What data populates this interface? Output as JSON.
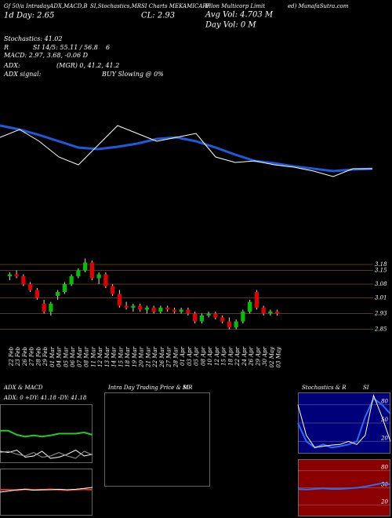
{
  "header": {
    "row1": [
      "Gf 50/a IntradayADX,MACD,B",
      "SI,Stochastics,MR",
      "SI Charts MEKAMICARP",
      "Filon Multicorp Limit",
      "ed) MunafaSutra.com"
    ],
    "day": "1d Day: 2.65",
    "close": "CL: 2.93",
    "avg_vol": "Avg Vol: 4.703 M",
    "day_vol": "Day Vol: 0  M",
    "stats": [
      "Stochastics: 41.02",
      "R",
      "SI 14/5: 55.11 / 56.8",
      "6",
      "MACD: 2.97, 3.68, -0.06 D",
      "ADX:",
      "(MGR) 0, 41.2, 41.2",
      "ADX  signal:",
      "BUY Slowing @ 0%"
    ]
  },
  "chart_data": [
    {
      "type": "line",
      "ylim": [
        0,
        100
      ],
      "series": [
        {
          "color": "#1e5adc",
          "values": [
            80,
            75,
            68,
            60,
            52,
            50,
            53,
            57,
            63,
            65,
            60,
            52,
            43,
            35,
            32,
            28,
            25,
            22,
            24,
            25
          ]
        },
        {
          "color": "#ffffff",
          "values": [
            65,
            75,
            60,
            40,
            30,
            55,
            80,
            70,
            60,
            65,
            70,
            40,
            33,
            35,
            30,
            27,
            22,
            15,
            25,
            25
          ]
        }
      ]
    },
    {
      "type": "candlestick",
      "categories": [
        "22 Feb",
        "23 Feb",
        "26 Feb",
        "27 Feb",
        "28 Feb",
        "29 Feb",
        "01 Mar",
        "04 Mar",
        "05 Mar",
        "06 Mar",
        "07 Mar",
        "08 Mar",
        "11 Mar",
        "12 Mar",
        "13 Mar",
        "14 Mar",
        "15 Mar",
        "18 Mar",
        "19 Mar",
        "20 Mar",
        "21 Mar",
        "22 Mar",
        "26 Mar",
        "27 Mar",
        "28 Mar",
        "01 Apr",
        "03 Apr",
        "05 Apr",
        "08 Apr",
        "10 Apr",
        "12 Apr",
        "15 Apr",
        "18 Apr",
        "22 Apr",
        "24 Apr",
        "26 Apr",
        "29 Apr",
        "30 Apr",
        "02 May",
        "03 May"
      ],
      "open": [
        3.12,
        3.13,
        3.12,
        3.08,
        3.05,
        2.98,
        2.94,
        3.02,
        3.04,
        3.08,
        3.12,
        3.15,
        3.19,
        3.11,
        3.13,
        3.07,
        3.03,
        2.97,
        2.96,
        2.97,
        2.95,
        2.96,
        2.94,
        2.96,
        2.95,
        2.94,
        2.95,
        2.93,
        2.89,
        2.92,
        2.93,
        2.91,
        2.89,
        2.86,
        2.89,
        2.94,
        3.04,
        2.96,
        2.93,
        2.94
      ],
      "high": [
        3.14,
        3.15,
        3.13,
        3.09,
        3.06,
        3.0,
        2.99,
        3.05,
        3.09,
        3.13,
        3.16,
        3.21,
        3.2,
        3.14,
        3.14,
        3.08,
        3.05,
        2.99,
        2.98,
        2.98,
        2.97,
        2.97,
        2.97,
        2.97,
        2.96,
        2.96,
        2.96,
        2.94,
        2.93,
        2.94,
        2.94,
        2.92,
        2.91,
        2.9,
        2.95,
        3.0,
        3.05,
        2.97,
        2.95,
        2.95
      ],
      "low": [
        3.1,
        3.11,
        3.07,
        3.04,
        3.0,
        2.93,
        2.92,
        3.0,
        3.03,
        3.07,
        3.11,
        3.14,
        3.1,
        3.08,
        3.06,
        3.02,
        2.96,
        2.95,
        2.94,
        2.94,
        2.93,
        2.93,
        2.93,
        2.94,
        2.93,
        2.93,
        2.92,
        2.88,
        2.88,
        2.91,
        2.9,
        2.88,
        2.85,
        2.85,
        2.88,
        2.93,
        2.95,
        2.92,
        2.92,
        2.92
      ],
      "close": [
        3.13,
        3.12,
        3.08,
        3.05,
        3.01,
        2.94,
        2.98,
        3.04,
        3.08,
        3.12,
        3.15,
        3.19,
        3.11,
        3.13,
        3.07,
        3.03,
        2.97,
        2.96,
        2.97,
        2.95,
        2.96,
        2.94,
        2.96,
        2.95,
        2.94,
        2.95,
        2.93,
        2.89,
        2.92,
        2.93,
        2.91,
        2.89,
        2.86,
        2.89,
        2.94,
        2.99,
        2.96,
        2.93,
        2.94,
        2.93
      ],
      "up_color": "#00c000",
      "down_color": "#e00000",
      "ylim": [
        2.8,
        3.24
      ],
      "yticks": [
        3.18,
        3.15,
        3.08,
        3.01,
        2.93,
        2.85
      ],
      "grid": true,
      "grid_color": "#5a3a10"
    },
    {
      "type": "line",
      "title": "ADX  & MACD",
      "annotation": "ADX: 0  +DY: 41.18  -DY: 41.18",
      "ylim": [
        0,
        100
      ],
      "series": [
        {
          "color": "#22cc22",
          "values": [
            55,
            55,
            48,
            45,
            47,
            45,
            47,
            50,
            50,
            50,
            52,
            48
          ]
        },
        {
          "color": "#ffffff",
          "values": [
            20,
            18,
            22,
            10,
            12,
            20,
            8,
            10,
            15,
            22,
            12,
            15
          ]
        },
        {
          "color": "#999999",
          "values": [
            18,
            20,
            15,
            12,
            18,
            10,
            12,
            18,
            12,
            8,
            20,
            14
          ]
        }
      ]
    },
    {
      "type": "line",
      "ylim": [
        0,
        100
      ],
      "series": [
        {
          "color": "#e03020",
          "values": [
            55,
            55,
            54,
            56,
            55,
            55,
            56,
            55,
            54,
            55,
            56,
            55
          ]
        },
        {
          "color": "#ffffff",
          "values": [
            50,
            52,
            55,
            56,
            54,
            55,
            55,
            56,
            55,
            56,
            58,
            60
          ]
        }
      ]
    },
    {
      "type": "empty",
      "title": "Intra Day Trading Price  & MR",
      "subtitle": "SI"
    },
    {
      "type": "line",
      "title": "Stochastics & R",
      "subtitle": "SI",
      "background": "#00007a",
      "ylim": [
        0,
        100
      ],
      "yticks": [
        80,
        50,
        20
      ],
      "series": [
        {
          "color": "#2a6ef0",
          "values": [
            50,
            20,
            10,
            15,
            10,
            12,
            15,
            20,
            60,
            90,
            80,
            65
          ]
        },
        {
          "color": "#ffffff",
          "values": [
            80,
            30,
            10,
            12,
            14,
            15,
            20,
            15,
            30,
            95,
            60,
            20
          ]
        }
      ]
    },
    {
      "type": "line",
      "background": "#8b0000",
      "ylim": [
        0,
        100
      ],
      "yticks": [
        80,
        50,
        20
      ],
      "series": [
        {
          "color": "#2a6ef0",
          "values": [
            48,
            47,
            48,
            49,
            48,
            48,
            49,
            50,
            52,
            55,
            58,
            56
          ]
        }
      ]
    }
  ]
}
